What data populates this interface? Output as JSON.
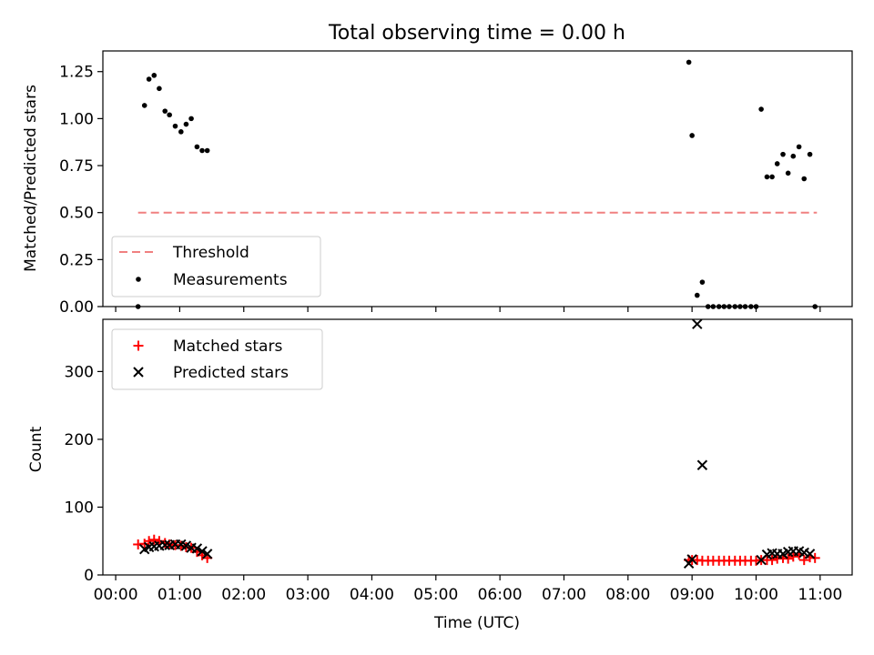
{
  "title": "Total observing time = 0.00 h",
  "chart_data": [
    {
      "type": "scatter",
      "ylabel": "Matched/Predicted stars",
      "xlabel": "",
      "x_unit": "hours UTC",
      "xlim": [
        -0.2,
        11.5
      ],
      "ylim": [
        0,
        1.36
      ],
      "yticks": [
        "0.00",
        "0.25",
        "0.50",
        "0.75",
        "1.00",
        "1.25"
      ],
      "ytick_values": [
        0,
        0.25,
        0.5,
        0.75,
        1.0,
        1.25
      ],
      "grid": false,
      "legend_position": "lower-left",
      "legend": [
        {
          "label": "Threshold",
          "marker": "dashed-line",
          "color": "#f08080"
        },
        {
          "label": "Measurements",
          "marker": "dot",
          "color": "#000000"
        }
      ],
      "threshold": {
        "name": "Threshold",
        "y": 0.5,
        "x": [
          0.35,
          10.95
        ],
        "color": "#f08080",
        "style": "dashed"
      },
      "series": [
        {
          "name": "Measurements",
          "color": "#000000",
          "points": [
            [
              0.35,
              0.0
            ],
            [
              0.45,
              1.07
            ],
            [
              0.52,
              1.21
            ],
            [
              0.6,
              1.23
            ],
            [
              0.68,
              1.16
            ],
            [
              0.77,
              1.04
            ],
            [
              0.84,
              1.02
            ],
            [
              0.93,
              0.96
            ],
            [
              1.02,
              0.93
            ],
            [
              1.1,
              0.97
            ],
            [
              1.18,
              1.0
            ],
            [
              1.27,
              0.85
            ],
            [
              1.35,
              0.83
            ],
            [
              1.43,
              0.83
            ],
            [
              8.95,
              1.3
            ],
            [
              9.0,
              0.91
            ],
            [
              9.08,
              0.06
            ],
            [
              9.16,
              0.13
            ],
            [
              9.25,
              0.0
            ],
            [
              9.33,
              0.0
            ],
            [
              9.42,
              0.0
            ],
            [
              9.5,
              0.0
            ],
            [
              9.58,
              0.0
            ],
            [
              9.67,
              0.0
            ],
            [
              9.75,
              0.0
            ],
            [
              9.83,
              0.0
            ],
            [
              9.92,
              0.0
            ],
            [
              10.0,
              0.0
            ],
            [
              10.08,
              1.05
            ],
            [
              10.17,
              0.69
            ],
            [
              10.25,
              0.69
            ],
            [
              10.33,
              0.76
            ],
            [
              10.42,
              0.81
            ],
            [
              10.5,
              0.71
            ],
            [
              10.58,
              0.8
            ],
            [
              10.67,
              0.85
            ],
            [
              10.75,
              0.68
            ],
            [
              10.84,
              0.81
            ],
            [
              10.92,
              0.0
            ]
          ]
        }
      ]
    },
    {
      "type": "scatter",
      "ylabel": "Count",
      "xlabel": "Time (UTC)",
      "x_unit": "hours UTC",
      "xlim": [
        -0.2,
        11.5
      ],
      "ylim": [
        0,
        377
      ],
      "xticks": [
        "00:00",
        "01:00",
        "02:00",
        "03:00",
        "04:00",
        "05:00",
        "06:00",
        "07:00",
        "08:00",
        "09:00",
        "10:00",
        "11:00"
      ],
      "xtick_values": [
        0,
        1,
        2,
        3,
        4,
        5,
        6,
        7,
        8,
        9,
        10,
        11
      ],
      "yticks": [
        "0",
        "100",
        "200",
        "300"
      ],
      "ytick_values": [
        0,
        100,
        200,
        300
      ],
      "grid": false,
      "legend_position": "upper-left",
      "legend": [
        {
          "label": "Matched stars",
          "marker": "plus",
          "color": "#ff0000"
        },
        {
          "label": "Predicted stars",
          "marker": "x",
          "color": "#000000"
        }
      ],
      "series": [
        {
          "name": "Matched stars",
          "color": "#ff0000",
          "marker": "plus",
          "points": [
            [
              0.35,
              45
            ],
            [
              0.45,
              46
            ],
            [
              0.52,
              50
            ],
            [
              0.6,
              52
            ],
            [
              0.68,
              50
            ],
            [
              0.77,
              47
            ],
            [
              0.84,
              45
            ],
            [
              0.93,
              44
            ],
            [
              1.02,
              43
            ],
            [
              1.1,
              41
            ],
            [
              1.18,
              40
            ],
            [
              1.27,
              34
            ],
            [
              1.35,
              29
            ],
            [
              1.43,
              25
            ],
            [
              8.95,
              22
            ],
            [
              9.0,
              22
            ],
            [
              9.08,
              22
            ],
            [
              9.16,
              21
            ],
            [
              9.25,
              21
            ],
            [
              9.33,
              21
            ],
            [
              9.42,
              21
            ],
            [
              9.5,
              21
            ],
            [
              9.58,
              21
            ],
            [
              9.67,
              21
            ],
            [
              9.75,
              21
            ],
            [
              9.83,
              21
            ],
            [
              9.92,
              21
            ],
            [
              10.0,
              21
            ],
            [
              10.08,
              22
            ],
            [
              10.17,
              22
            ],
            [
              10.25,
              22
            ],
            [
              10.33,
              24
            ],
            [
              10.42,
              25
            ],
            [
              10.5,
              24
            ],
            [
              10.58,
              27
            ],
            [
              10.67,
              30
            ],
            [
              10.75,
              22
            ],
            [
              10.84,
              26
            ],
            [
              10.92,
              25
            ]
          ]
        },
        {
          "name": "Predicted stars",
          "color": "#000000",
          "marker": "x",
          "points": [
            [
              0.45,
              38
            ],
            [
              0.52,
              41
            ],
            [
              0.6,
              42
            ],
            [
              0.68,
              43
            ],
            [
              0.77,
              44
            ],
            [
              0.84,
              44
            ],
            [
              0.93,
              45
            ],
            [
              1.02,
              45
            ],
            [
              1.1,
              43
            ],
            [
              1.18,
              40
            ],
            [
              1.27,
              39
            ],
            [
              1.35,
              35
            ],
            [
              1.43,
              31
            ],
            [
              8.95,
              17
            ],
            [
              9.0,
              23
            ],
            [
              9.08,
              370
            ],
            [
              9.16,
              162
            ],
            [
              10.08,
              22
            ],
            [
              10.17,
              30
            ],
            [
              10.25,
              32
            ],
            [
              10.33,
              31
            ],
            [
              10.42,
              31
            ],
            [
              10.5,
              34
            ],
            [
              10.58,
              35
            ],
            [
              10.67,
              35
            ],
            [
              10.75,
              33
            ],
            [
              10.84,
              31
            ]
          ]
        }
      ]
    }
  ]
}
